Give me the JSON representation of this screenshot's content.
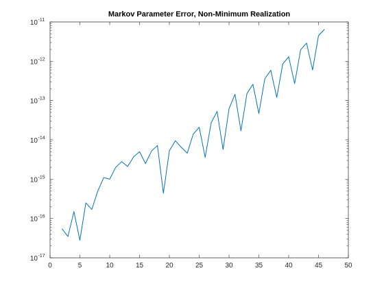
{
  "chart_data": {
    "type": "line",
    "title": "Markov Parameter Error, Non-Minimum Realization",
    "xlabel": "",
    "ylabel": "",
    "xlim": [
      0,
      50
    ],
    "ylim": [
      1e-17,
      1e-11
    ],
    "yscale": "log",
    "grid": false,
    "x_ticks": [
      0,
      5,
      10,
      15,
      20,
      25,
      30,
      35,
      40,
      45,
      50
    ],
    "y_ticks": [
      {
        "value": 1e-17,
        "base": "10",
        "exponent": "-17"
      },
      {
        "value": 1e-16,
        "base": "10",
        "exponent": "-16"
      },
      {
        "value": 1e-15,
        "base": "10",
        "exponent": "-15"
      },
      {
        "value": 1e-14,
        "base": "10",
        "exponent": "-14"
      },
      {
        "value": 1e-13,
        "base": "10",
        "exponent": "-13"
      },
      {
        "value": 1e-12,
        "base": "10",
        "exponent": "-12"
      },
      {
        "value": 1e-11,
        "base": "10",
        "exponent": "-11"
      }
    ],
    "series": [
      {
        "color": "#0072BD",
        "x": [
          2,
          3,
          4,
          5,
          6,
          7,
          8,
          9,
          10,
          11,
          12,
          13,
          14,
          15,
          16,
          17,
          18,
          19,
          20,
          21,
          22,
          23,
          24,
          25,
          26,
          27,
          28,
          29,
          30,
          31,
          32,
          33,
          34,
          35,
          36,
          37,
          38,
          39,
          40,
          41,
          42,
          43,
          44,
          45,
          46
        ],
        "y": [
          5.5e-17,
          3.5e-17,
          1.5e-16,
          2.8e-17,
          2.5e-16,
          1.7e-16,
          5e-16,
          1.1e-15,
          1e-15,
          2e-15,
          2.8e-15,
          2.1e-15,
          3.7e-15,
          5e-15,
          2.5e-15,
          5.2e-15,
          7.2e-15,
          4.4e-16,
          5.3e-15,
          9.5e-15,
          6.5e-15,
          4.6e-15,
          1.4e-14,
          2.1e-14,
          3.6e-15,
          2.7e-14,
          5.3e-14,
          5.7e-15,
          6.2e-14,
          1.45e-13,
          1.7e-14,
          1.5e-13,
          2.6e-13,
          4.7e-14,
          3.6e-13,
          5.9e-13,
          1.2e-13,
          8.5e-13,
          1.3e-12,
          2.7e-13,
          1.95e-12,
          2.9e-12,
          6e-13,
          4.5e-12,
          6.5e-12
        ]
      }
    ]
  }
}
